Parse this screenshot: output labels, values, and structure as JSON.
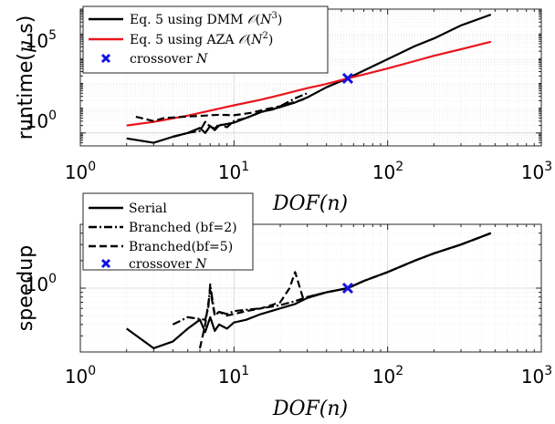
{
  "colors": {
    "black": "#000000",
    "red": "#e8141b",
    "blue": "#1212e0"
  },
  "top": {
    "ylabel": "runtime($\\mu$ s)",
    "xlabel": "DOF(n)",
    "y_tick_labels": [
      {
        "base": "10",
        "exp": "0"
      },
      {
        "base": "10",
        "exp": "5"
      }
    ],
    "x_tick_labels": [
      {
        "base": "10",
        "exp": "0"
      },
      {
        "base": "10",
        "exp": "1"
      },
      {
        "base": "10",
        "exp": "2"
      },
      {
        "base": "10",
        "exp": "3"
      }
    ],
    "legend": [
      {
        "text": "Eq. 5 using DMM ",
        "math": "O(N3)"
      },
      {
        "text": "Eq. 5 using AZA ",
        "math": "O(N2)"
      },
      {
        "text": "crossover ",
        "math": "N"
      }
    ]
  },
  "bottom": {
    "ylabel": "speedup",
    "xlabel": "DOF(n)",
    "y_tick_labels": [
      {
        "base": "10",
        "exp": "0"
      }
    ],
    "x_tick_labels": [
      {
        "base": "10",
        "exp": "0"
      },
      {
        "base": "10",
        "exp": "1"
      },
      {
        "base": "10",
        "exp": "2"
      },
      {
        "base": "10",
        "exp": "3"
      }
    ],
    "legend": [
      {
        "text": "Serial",
        "math": ""
      },
      {
        "text": "Branched (bf=2)",
        "math": ""
      },
      {
        "text": "Branched(bf=5)",
        "math": ""
      },
      {
        "text": "crossover ",
        "math": "N"
      }
    ]
  },
  "chart_data": [
    {
      "type": "line",
      "xscale": "log",
      "yscale": "log",
      "xlim": [
        1,
        1000
      ],
      "ylim": [
        0.3,
        100000
      ],
      "xlabel": "DOF(n)",
      "ylabel": "runtime(μ s)",
      "grid": true,
      "legend_position": "top-left",
      "series": [
        {
          "name": "Eq. 5 using DMM O(N^3)",
          "color": "#000000",
          "style": "solid",
          "x": [
            2,
            3,
            4,
            5,
            6,
            6.5,
            7,
            7.5,
            8,
            9,
            10,
            12,
            15,
            20,
            25,
            30,
            40,
            55,
            70,
            100,
            150,
            200,
            300,
            470
          ],
          "y": [
            0.6,
            0.4,
            0.7,
            1.0,
            1.6,
            1.0,
            1.9,
            1.3,
            2.0,
            2.3,
            2.6,
            4,
            7,
            11,
            17,
            27,
            70,
            160,
            330,
            950,
            3200,
            6500,
            22000,
            60000
          ]
        },
        {
          "name": "Eq. 5 using AZA O(N^2)",
          "color": "#e8141b",
          "style": "solid",
          "x": [
            2,
            3,
            5,
            7,
            10,
            15,
            20,
            30,
            40,
            55,
            70,
            100,
            150,
            200,
            300,
            470
          ],
          "y": [
            2,
            2.8,
            5,
            8,
            13,
            22,
            34,
            64,
            95,
            160,
            230,
            400,
            800,
            1300,
            2400,
            4800
          ]
        },
        {
          "name": "Branched (bf=2)",
          "color": "#000000",
          "style": "dashdot",
          "x": [
            4,
            5,
            6,
            6.5,
            7,
            7.5,
            8,
            9,
            10,
            12,
            15,
            18,
            20,
            25,
            30
          ],
          "y": [
            0.7,
            1.0,
            1.2,
            2.8,
            1.8,
            1.5,
            2.3,
            1.7,
            3.0,
            4.0,
            7,
            9,
            12,
            25,
            40
          ]
        },
        {
          "name": "Branched(bf=5)",
          "color": "#000000",
          "style": "dashed",
          "x": [
            2.3,
            3,
            3.5,
            4,
            5,
            6,
            7,
            8,
            10,
            13,
            16,
            20,
            25,
            28,
            30
          ],
          "y": [
            4.5,
            3.0,
            4.0,
            4.2,
            4.6,
            4.9,
            5.2,
            5.4,
            5.2,
            6.5,
            9,
            12,
            18,
            22,
            28
          ]
        },
        {
          "name": "crossover N",
          "color": "#1212e0",
          "style": "marker-x",
          "x": [
            55
          ],
          "y": [
            160
          ]
        }
      ]
    },
    {
      "type": "line",
      "xscale": "log",
      "yscale": "log",
      "xlim": [
        1,
        1000
      ],
      "ylim": [
        0.2,
        5
      ],
      "xlabel": "DOF(n)",
      "ylabel": "speedup",
      "grid": true,
      "legend_position": "top-left",
      "series": [
        {
          "name": "Serial",
          "color": "#000000",
          "style": "solid",
          "x": [
            2,
            3,
            4,
            5,
            6,
            6.5,
            7,
            7.5,
            8,
            9,
            10,
            12,
            15,
            20,
            25,
            30,
            40,
            55,
            70,
            100,
            150,
            200,
            300,
            470
          ],
          "y": [
            0.36,
            0.22,
            0.26,
            0.36,
            0.45,
            0.33,
            0.48,
            0.34,
            0.4,
            0.36,
            0.42,
            0.45,
            0.52,
            0.6,
            0.67,
            0.78,
            0.9,
            1.0,
            1.2,
            1.5,
            2.0,
            2.4,
            3.0,
            4.0
          ]
        },
        {
          "name": "Branched (bf=2)",
          "color": "#000000",
          "style": "dashdot",
          "x": [
            4,
            5,
            6,
            6.5,
            6.8,
            7,
            7.5,
            8,
            9,
            10,
            12,
            15,
            20,
            25,
            30,
            40,
            55,
            70,
            100,
            150,
            200,
            300,
            470
          ],
          "y": [
            0.4,
            0.48,
            0.46,
            0.45,
            0.6,
            1.1,
            0.5,
            0.55,
            0.52,
            0.56,
            0.58,
            0.6,
            0.65,
            0.72,
            0.8,
            0.9,
            1.0,
            1.2,
            1.5,
            2.0,
            2.4,
            3.0,
            4.0
          ]
        },
        {
          "name": "Branched(bf=5)",
          "color": "#000000",
          "style": "dashed",
          "x": [
            6,
            6.5,
            7,
            7.5,
            8,
            9,
            10,
            12,
            15,
            20,
            23,
            25,
            28,
            30,
            40,
            55,
            70,
            100,
            150,
            200,
            300,
            470
          ],
          "y": [
            0.22,
            0.4,
            0.95,
            0.5,
            0.55,
            0.5,
            0.52,
            0.56,
            0.6,
            0.7,
            1.0,
            1.5,
            0.8,
            0.8,
            0.9,
            1.0,
            1.2,
            1.5,
            2.0,
            2.4,
            3.0,
            4.0
          ]
        },
        {
          "name": "crossover N",
          "color": "#1212e0",
          "style": "marker-x",
          "x": [
            55
          ],
          "y": [
            1.0
          ]
        }
      ]
    }
  ]
}
